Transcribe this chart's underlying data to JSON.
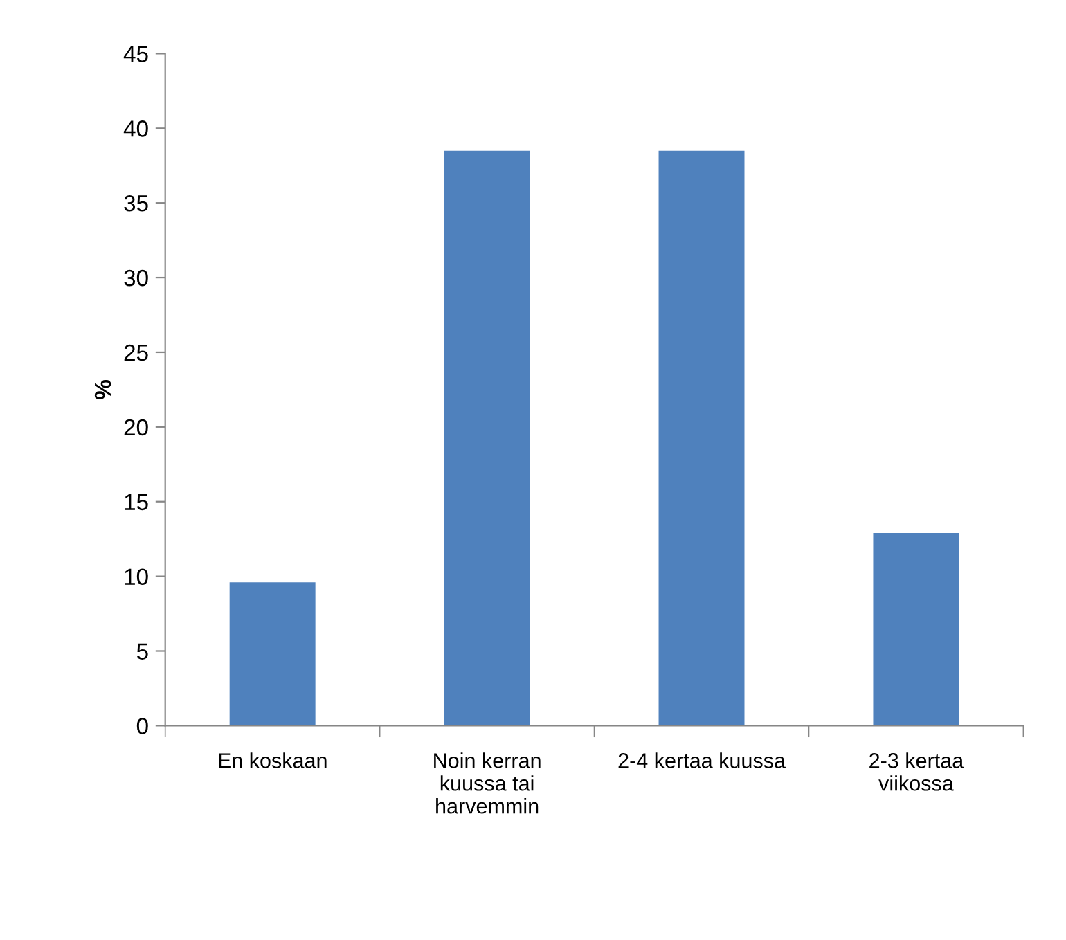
{
  "chart_data": {
    "type": "bar",
    "ylabel": "%",
    "categories": [
      "En koskaan",
      "Noin kerran\nkuussa tai\nharvemmin",
      "2-4 kertaa kuussa",
      "2-3 kertaa\nviikossa"
    ],
    "values": [
      9.6,
      38.5,
      38.5,
      12.9
    ],
    "color": "#4f81bd",
    "ylim": [
      0,
      45
    ],
    "yticks": [
      0,
      5,
      10,
      15,
      20,
      25,
      30,
      35,
      40,
      45
    ],
    "grid": false,
    "legend": false
  }
}
